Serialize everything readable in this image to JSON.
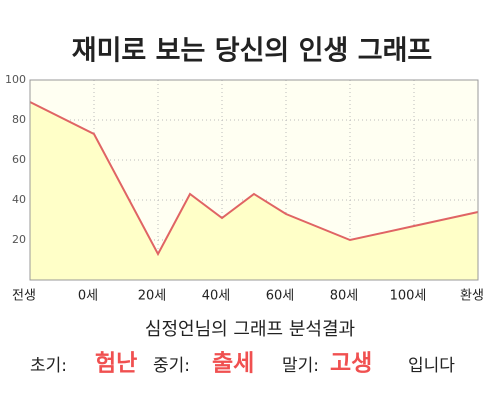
{
  "chart_data": {
    "type": "line",
    "title": "재미로 보는 당신의 인생 그래프",
    "x": [
      -20,
      0,
      20,
      30,
      40,
      50,
      60,
      80,
      100,
      120
    ],
    "values": [
      89,
      73,
      13,
      43,
      31,
      43,
      33,
      20,
      27,
      34
    ],
    "color": "#e06464",
    "fill": "#ffffc8",
    "xlim": [
      -20,
      120
    ],
    "xticks": [
      {
        "value": -20,
        "label": "전생"
      },
      {
        "value": 0,
        "label": "0세"
      },
      {
        "value": 20,
        "label": "20세"
      },
      {
        "value": 40,
        "label": "40세"
      },
      {
        "value": 60,
        "label": "60세"
      },
      {
        "value": 80,
        "label": "80세"
      },
      {
        "value": 100,
        "label": "100세"
      },
      {
        "value": 120,
        "label": "환생"
      }
    ],
    "ylim": [
      0,
      100
    ],
    "yticks": [
      20,
      40,
      60,
      80,
      100
    ],
    "grid": true
  },
  "summary": {
    "heading": "심정언님의 그래프 분석결과",
    "parts": [
      {
        "label": "초기:",
        "value": "험난"
      },
      {
        "label": "중기:",
        "value": "출세"
      },
      {
        "label": "말기:",
        "value": "고생"
      }
    ],
    "ending": "입니다"
  }
}
